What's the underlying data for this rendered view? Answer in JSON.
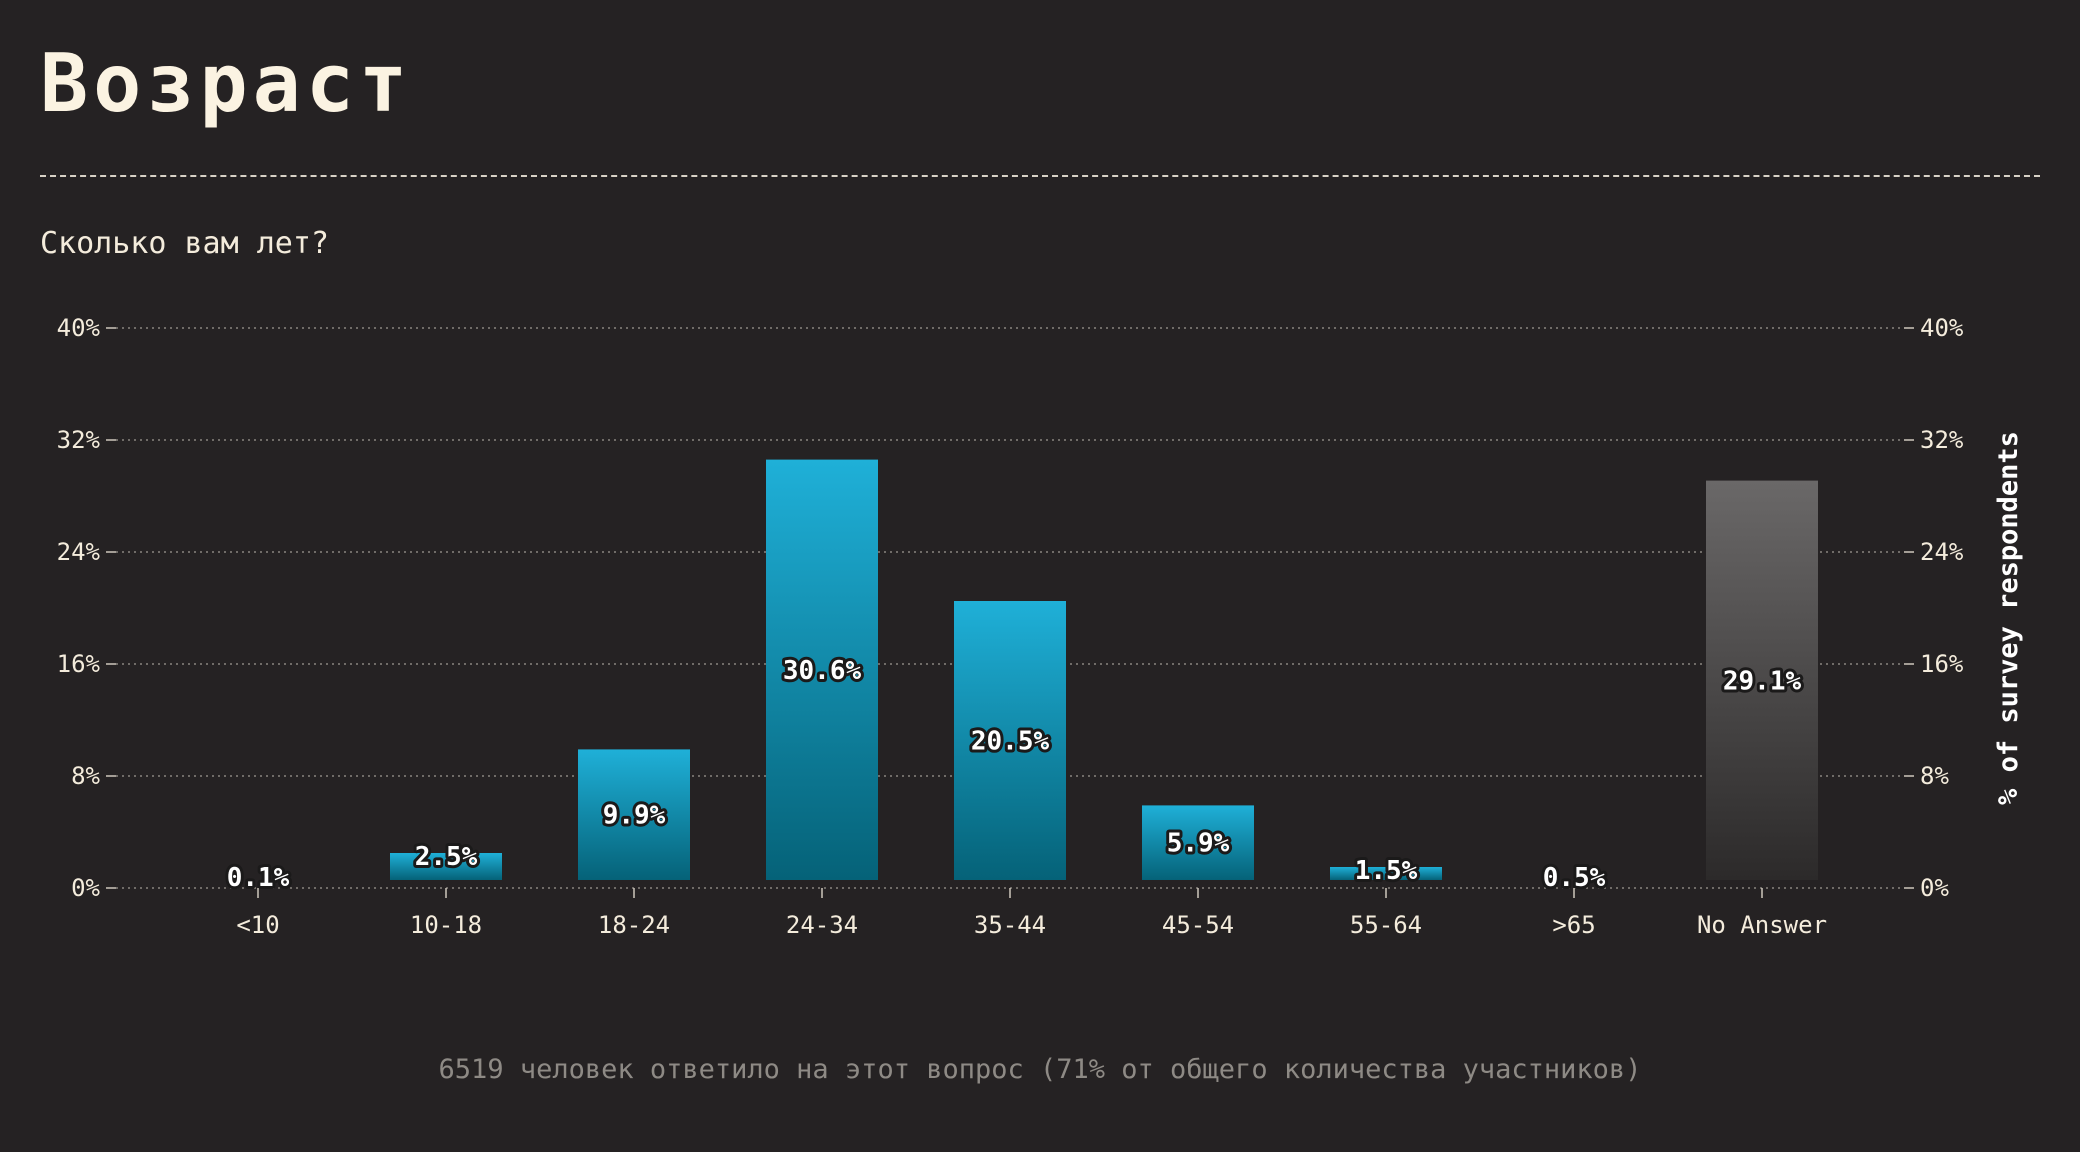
{
  "page": {
    "title": "Возраст",
    "question": "Сколько вам лет?",
    "footnote": "6519 человек ответило на этот вопрос (71% от общего количества участников)"
  },
  "chart_data": {
    "type": "bar",
    "title": "",
    "xlabel": "",
    "ylabel": "% of survey respondents",
    "categories": [
      "<10",
      "10-18",
      "18-24",
      "24-34",
      "35-44",
      "45-54",
      "55-64",
      ">65",
      "No Answer"
    ],
    "values": [
      0.1,
      2.5,
      9.9,
      30.6,
      20.5,
      5.9,
      1.5,
      0.5,
      29.1
    ],
    "value_labels": [
      "0.1%",
      "2.5%",
      "9.9%",
      "30.6%",
      "20.5%",
      "5.9%",
      "1.5%",
      "0.5%",
      "29.1%"
    ],
    "ylim": [
      0,
      40
    ],
    "yticks": [
      0,
      8,
      16,
      24,
      32,
      40
    ],
    "ytick_labels": [
      "0%",
      "8%",
      "16%",
      "24%",
      "32%",
      "40%"
    ],
    "grid": true,
    "axes": "left-and-right",
    "colors": {
      "bar_top": "#1fb0d8",
      "bar_bottom": "#056278",
      "no_answer_top": "#6a6868",
      "no_answer_bottom": "#2c2a2a",
      "grid": "#8a8580",
      "background": "#252223"
    }
  }
}
